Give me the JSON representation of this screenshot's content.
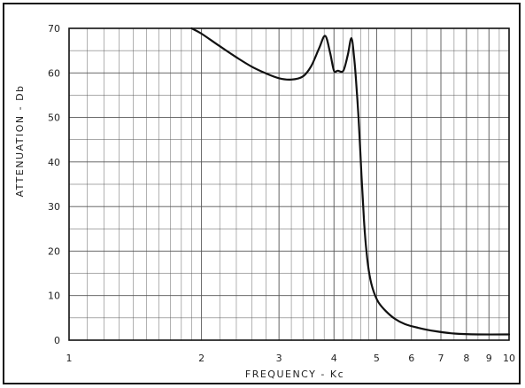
{
  "chart_data": {
    "type": "line",
    "title": "",
    "xlabel": "FREQUENCY - Kc",
    "ylabel": "ATTENUATION - Db",
    "x_scale": "log",
    "xlim": [
      1,
      10
    ],
    "ylim": [
      0,
      70
    ],
    "grid": true,
    "x_ticks": [
      1,
      2,
      3,
      4,
      5,
      6,
      7,
      8,
      9,
      10
    ],
    "x_tick_labels": [
      "1",
      "2",
      "3",
      "4",
      "5",
      "6",
      "7",
      "8",
      "9",
      "10"
    ],
    "y_ticks": [
      0,
      10,
      20,
      30,
      40,
      50,
      60,
      70
    ],
    "y_tick_labels": [
      "0",
      "10",
      "20",
      "30",
      "40",
      "50",
      "60",
      "70"
    ],
    "series": [
      {
        "color": "#111111",
        "points": [
          [
            1.9,
            70.0
          ],
          [
            2.0,
            68.8
          ],
          [
            2.2,
            66.0
          ],
          [
            2.4,
            63.5
          ],
          [
            2.6,
            61.4
          ],
          [
            2.8,
            59.9
          ],
          [
            3.0,
            58.8
          ],
          [
            3.2,
            58.5
          ],
          [
            3.4,
            59.2
          ],
          [
            3.55,
            61.5
          ],
          [
            3.7,
            65.5
          ],
          [
            3.82,
            68.3
          ],
          [
            3.92,
            64.5
          ],
          [
            4.0,
            60.5
          ],
          [
            4.08,
            60.5
          ],
          [
            4.2,
            60.5
          ],
          [
            4.3,
            64.0
          ],
          [
            4.38,
            67.8
          ],
          [
            4.44,
            64.0
          ],
          [
            4.5,
            57.0
          ],
          [
            4.56,
            48.0
          ],
          [
            4.62,
            37.0
          ],
          [
            4.68,
            27.0
          ],
          [
            4.74,
            20.0
          ],
          [
            4.82,
            14.5
          ],
          [
            4.92,
            11.0
          ],
          [
            5.05,
            8.5
          ],
          [
            5.25,
            6.5
          ],
          [
            5.5,
            4.8
          ],
          [
            5.8,
            3.6
          ],
          [
            6.2,
            2.8
          ],
          [
            6.8,
            2.0
          ],
          [
            7.5,
            1.5
          ],
          [
            8.5,
            1.3
          ],
          [
            10.0,
            1.3
          ]
        ]
      }
    ]
  }
}
